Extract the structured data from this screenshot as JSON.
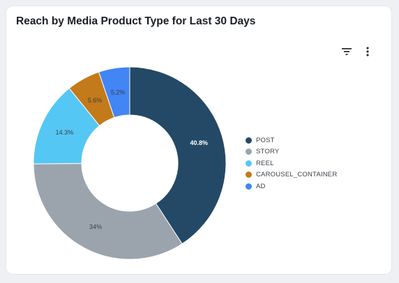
{
  "card": {
    "title": "Reach by Media Product Type for Last 30 Days"
  },
  "toolbar": {
    "icons": [
      "filter-icon",
      "more-vertical-icon"
    ]
  },
  "chart_data": {
    "type": "pie",
    "variant": "donut",
    "title": "Reach by Media Product Type for Last 30 Days",
    "categories": [
      "POST",
      "STORY",
      "REEL",
      "CAROUSEL_CONTAINER",
      "AD"
    ],
    "values": [
      40.8,
      34,
      14.3,
      5.6,
      5.2
    ],
    "labels": [
      "40.8%",
      "34%",
      "14.3%",
      "5.6%",
      "5.2%"
    ],
    "colors": [
      "#234966",
      "#9ba4ad",
      "#55c7f4",
      "#c37a1a",
      "#4285f4"
    ],
    "label_colors": [
      "#ffffff",
      "#3a3f45",
      "#3a3f45",
      "#3a3f45",
      "#3a3f45"
    ],
    "legend_position": "right",
    "start": "top",
    "direction": "clockwise"
  }
}
